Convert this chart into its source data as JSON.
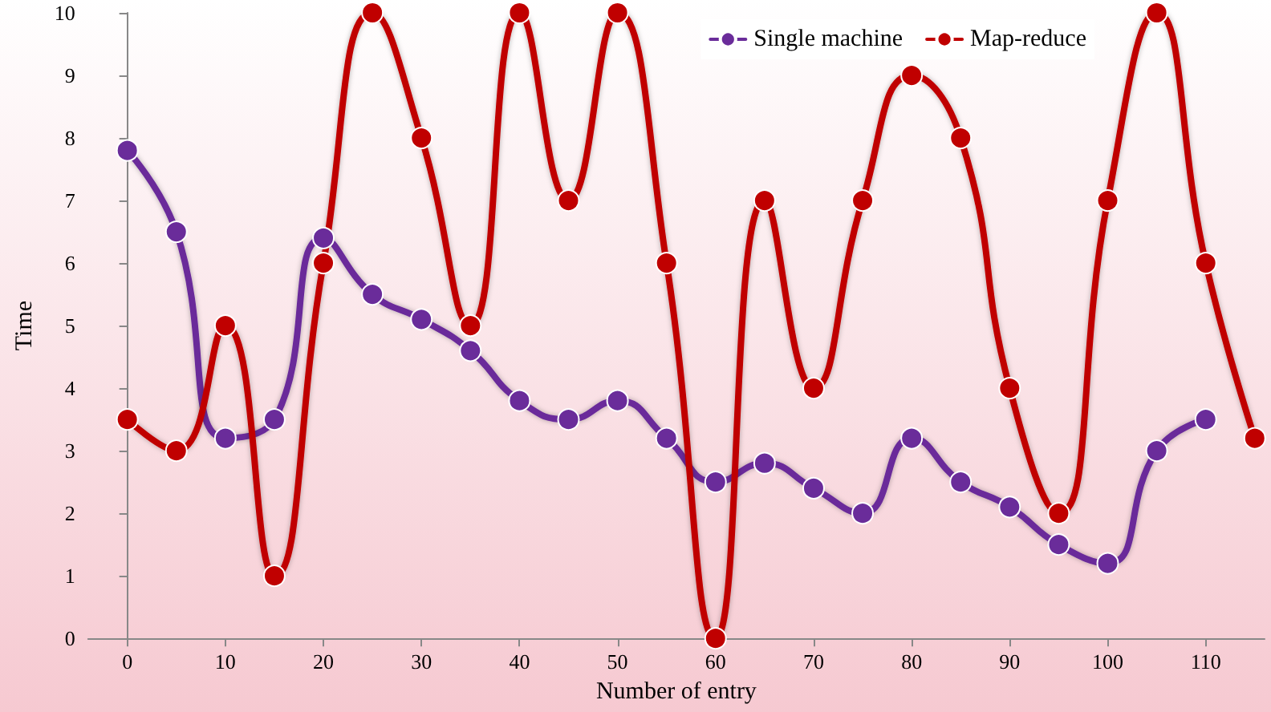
{
  "chart_data": {
    "type": "line",
    "xlabel": "Number of entry",
    "ylabel": "Time",
    "x": [
      0,
      5,
      10,
      15,
      20,
      25,
      30,
      35,
      40,
      45,
      50,
      55,
      60,
      65,
      70,
      75,
      80,
      85,
      90,
      95,
      100,
      105,
      110,
      115
    ],
    "series": [
      {
        "name": "Single machine",
        "color": "#6a2c9a",
        "values": [
          7.8,
          6.5,
          3.2,
          3.5,
          6.4,
          5.5,
          5.1,
          4.6,
          3.8,
          3.5,
          3.8,
          3.2,
          2.5,
          2.8,
          2.4,
          2.0,
          3.2,
          2.5,
          2.1,
          1.5,
          1.2,
          3.0,
          3.5,
          null
        ]
      },
      {
        "name": "Map-reduce",
        "color": "#c00000",
        "values": [
          3.5,
          3.0,
          5,
          1,
          6,
          10,
          8,
          5,
          10,
          7,
          10,
          6,
          0,
          7,
          4,
          7,
          9,
          8,
          4,
          2,
          7,
          10,
          6,
          3.2
        ]
      }
    ],
    "xlim": [
      -4,
      116
    ],
    "xticks": [
      0,
      10,
      20,
      30,
      40,
      50,
      60,
      70,
      80,
      90,
      100,
      110
    ],
    "ylim": [
      0,
      10
    ],
    "yticks": [
      0,
      1,
      2,
      3,
      4,
      5,
      6,
      7,
      8,
      9,
      10
    ],
    "grid": false,
    "legend": "top right",
    "marker": "circle"
  }
}
